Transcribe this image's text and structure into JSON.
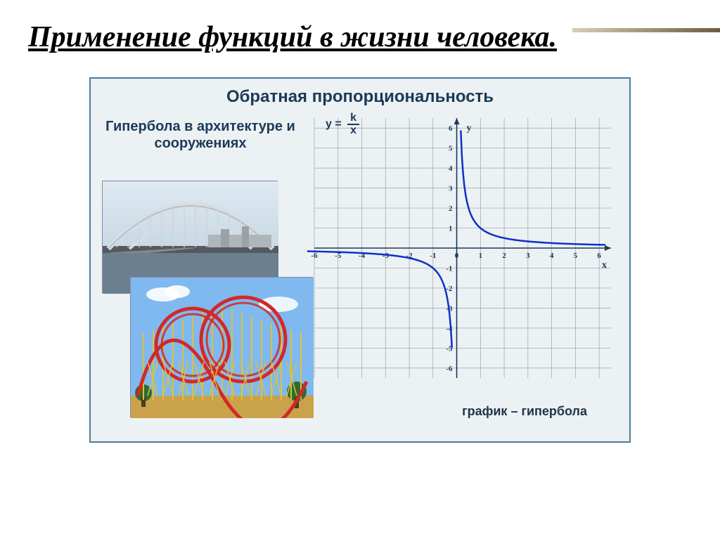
{
  "slide": {
    "title": "Применение функций в жизни человека."
  },
  "panel": {
    "title": "Обратная пропорциональность",
    "left_caption": "Гипербола в архитектуре и сооружениях",
    "chart_label": "график – гипербола",
    "formula_lhs": "y =",
    "formula_num": "k",
    "formula_den": "x"
  },
  "chart": {
    "type": "line",
    "xlim": [
      -6,
      6.5
    ],
    "ylim": [
      -6.5,
      6.5
    ],
    "xtick_vals": [
      -6,
      -5,
      -4,
      -3,
      -2,
      -1,
      0,
      1,
      2,
      3,
      4,
      5,
      6
    ],
    "ytick_vals": [
      -6,
      -5,
      -4,
      -3,
      -2,
      -1,
      1,
      2,
      3,
      4,
      5,
      6
    ],
    "xlabel": "x",
    "ylabel": "y",
    "grid_color": "#9aa3aa",
    "axis_color": "#1b3a56",
    "line_color": "#1030c8",
    "background_color": "#ecf1f4",
    "line_width": 2.5,
    "label_fontsize": 11,
    "axis_label_fontsize": 14,
    "k": 1,
    "pos_branch_xrange": [
      0.17,
      6.3
    ],
    "neg_branch_xrange": [
      -6.3,
      -0.17
    ],
    "sample_step": 0.05
  },
  "colors": {
    "panel_border": "#4a7a9a",
    "panel_bg": "#ecf1f4",
    "text_dark": "#1b3a56",
    "accent_rule_light": "#d9cdb3",
    "accent_rule_dark": "#6b5c3e"
  },
  "bridge": {
    "sky_top": "#dfeaf2",
    "sky_bottom": "#c7d8e4",
    "water": "#6b7f8e",
    "deck": "#555960",
    "arch": "#d8dde2",
    "cable": "#cfd4d9"
  },
  "coaster": {
    "sky": "#7fb9ef",
    "ground": "#c9a24b",
    "support": "#e0c13a",
    "track": "#d22828",
    "tree": "#2e6d2e"
  }
}
